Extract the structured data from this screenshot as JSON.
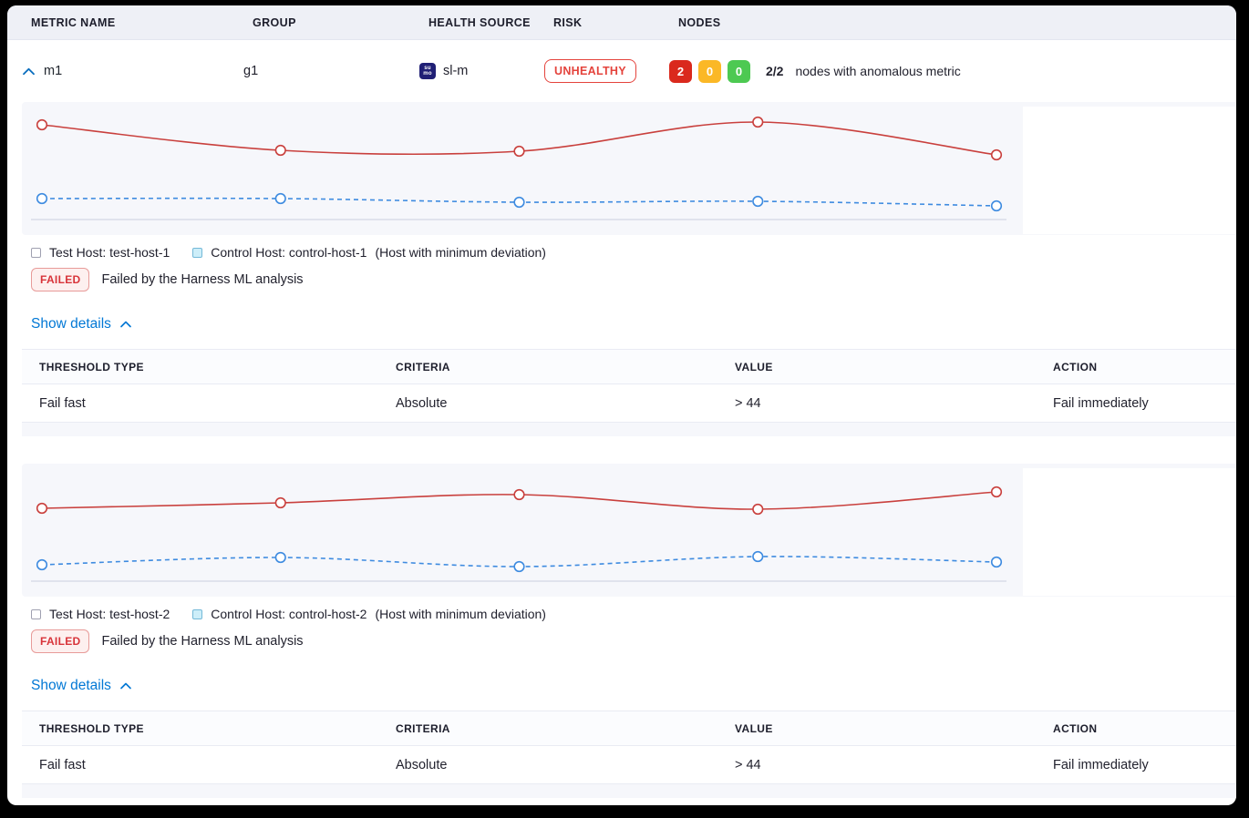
{
  "table_header": {
    "columns": [
      "METRIC NAME",
      "GROUP",
      "HEALTH SOURCE",
      "RISK",
      "NODES"
    ]
  },
  "metric_row": {
    "name": "m1",
    "group": "g1",
    "health_source": {
      "label": "sl-m",
      "icon_line1": "su",
      "icon_line2": "mo"
    },
    "risk_label": "UNHEALTHY",
    "nodes": {
      "counts": [
        {
          "value": "2",
          "color": "#da291d"
        },
        {
          "value": "0",
          "color": "#fbb826"
        },
        {
          "value": "0",
          "color": "#4dc952"
        }
      ],
      "ratio": "2/2",
      "caption": "nodes with anomalous metric"
    }
  },
  "panels": [
    {
      "legend": {
        "test_label": "Test Host: test-host-1",
        "control_label": "Control Host: control-host-1",
        "control_note": "(Host with minimum deviation)"
      },
      "status": {
        "badge": "FAILED",
        "message": "Failed by the Harness ML analysis"
      },
      "details_toggle": "Show details",
      "details_table": {
        "headers": [
          "THRESHOLD TYPE",
          "CRITERIA",
          "VALUE",
          "ACTION"
        ],
        "rows": [
          [
            "Fail fast",
            "Absolute",
            "> 44",
            "Fail immediately"
          ]
        ]
      }
    },
    {
      "legend": {
        "test_label": "Test Host: test-host-2",
        "control_label": "Control Host: control-host-2",
        "control_note": "(Host with minimum deviation)"
      },
      "status": {
        "badge": "FAILED",
        "message": "Failed by the Harness ML analysis"
      },
      "details_toggle": "Show details",
      "details_table": {
        "headers": [
          "THRESHOLD TYPE",
          "CRITERIA",
          "VALUE",
          "ACTION"
        ],
        "rows": [
          [
            "Fail fast",
            "Absolute",
            "> 44",
            "Fail immediately"
          ]
        ]
      }
    }
  ],
  "chart_data": [
    {
      "type": "line",
      "title": "",
      "xlabel": "",
      "ylabel": "",
      "axes_hidden": true,
      "grid": false,
      "legend_position": "below",
      "x": [
        1,
        2,
        3,
        4,
        5
      ],
      "ylim": [
        0,
        130
      ],
      "series": [
        {
          "name": "test-host-1",
          "color": "#c9403d",
          "style": "solid",
          "marker": "circle",
          "values": [
            104,
            76,
            75,
            107,
            71
          ]
        },
        {
          "name": "control-host-1",
          "color": "#3e8be0",
          "style": "dashed",
          "marker": "circle",
          "values": [
            23,
            23,
            19,
            20,
            15
          ]
        }
      ]
    },
    {
      "type": "line",
      "title": "",
      "xlabel": "",
      "ylabel": "",
      "axes_hidden": true,
      "grid": false,
      "legend_position": "below",
      "x": [
        1,
        2,
        3,
        4,
        5
      ],
      "ylim": [
        0,
        130
      ],
      "series": [
        {
          "name": "test-host-2",
          "color": "#c9403d",
          "style": "solid",
          "marker": "circle",
          "values": [
            80,
            86,
            95,
            79,
            98
          ]
        },
        {
          "name": "control-host-2",
          "color": "#3e8be0",
          "style": "dashed",
          "marker": "circle",
          "values": [
            18,
            26,
            16,
            27,
            21
          ]
        }
      ]
    }
  ],
  "colors": {
    "accent_blue": "#0278d5",
    "risk_red": "#e4433c",
    "failed_red": "#d8343a",
    "panel_bg": "#f6f7fb",
    "baseline": "#c9cfdf"
  }
}
